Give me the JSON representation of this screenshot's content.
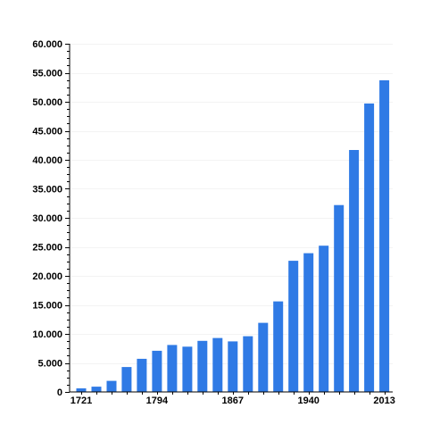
{
  "chart_data": {
    "type": "bar",
    "title": "",
    "xlabel": "",
    "ylabel": "",
    "bar_color": "#2f7ae5",
    "ylim": [
      0,
      60000
    ],
    "y_ticks": [
      0,
      5000,
      10000,
      15000,
      20000,
      25000,
      30000,
      35000,
      40000,
      45000,
      50000,
      55000,
      60000
    ],
    "y_tick_labels": [
      "0",
      "5.000",
      "10.000",
      "15.000",
      "20.000",
      "25.000",
      "30.000",
      "35.000",
      "40.000",
      "45.000",
      "50.000",
      "55.000",
      "60.000"
    ],
    "x_tick_labels": [
      {
        "label": "1721",
        "index": 0
      },
      {
        "label": "1794",
        "index": 5
      },
      {
        "label": "1867",
        "index": 10
      },
      {
        "label": "1940",
        "index": 15
      },
      {
        "label": "2013",
        "index": 20
      }
    ],
    "values": [
      620,
      900,
      1900,
      4300,
      5700,
      7100,
      8100,
      7800,
      8800,
      9300,
      8700,
      9600,
      11900,
      15600,
      22600,
      23900,
      25200,
      32200,
      41700,
      49700,
      53700
    ]
  }
}
